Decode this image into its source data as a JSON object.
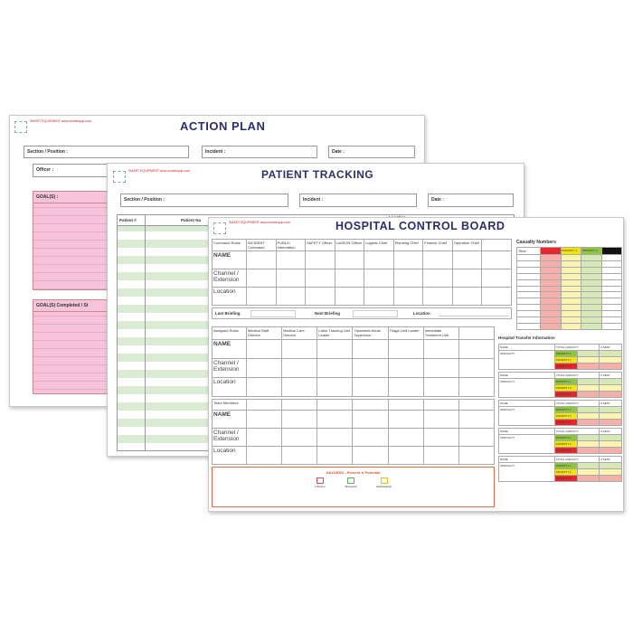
{
  "action_plan": {
    "title": "ACTION PLAN",
    "logo": "SMART EQUIPMENT www.smartequip.com",
    "section_label": "Section / Position :",
    "incident_label": "Incident :",
    "date_label": "Date :",
    "officer_label": "Officer :",
    "goals_label": "GOAL(S) :",
    "goals_completed_label": "GOAL(S) Completed / St"
  },
  "patient_tracking": {
    "title": "PATIENT TRACKING",
    "logo": "SMART EQUIPMENT www.smartequip.com",
    "section_label": "Section / Position :",
    "incident_label": "Incident :",
    "date_label": "Date :",
    "columns": [
      "Patient #",
      "Patient Na",
      "Location"
    ]
  },
  "control_board": {
    "title": "HOSPITAL CONTROL BOARD",
    "logo": "SMART EQUIPMENT www.smartequip.com",
    "command": {
      "header": "Command Roles",
      "roles": [
        "INCIDENT Command",
        "PUBLIC Information",
        "SAFETY Officer",
        "LIAISON Officer",
        "Logistic Chief",
        "Planning Chief",
        "Finance Chief",
        "Operation Chief",
        ""
      ],
      "row_labels": [
        "NAME",
        "Channel / Extension",
        "Location"
      ]
    },
    "briefing": {
      "last": "Last Briefing",
      "next": "Next Briefing",
      "location": "Location"
    },
    "assigned": {
      "header": "Assigned Roles",
      "roles": [
        "Medical Staff Director",
        "Medical Care Director",
        "Labor Tracking Unit Leader",
        "Treatment Areas Supervisor",
        "Triage Unit Leader",
        "Immediate Treatment Unit",
        ""
      ],
      "row_labels": [
        "NAME",
        "Channel / Extension",
        "Location"
      ]
    },
    "team": {
      "header": "Team Members",
      "row_labels": [
        "NAME",
        "Channel / Extension",
        "Location"
      ]
    },
    "hazards": {
      "title": "HAZARDS - Present & Potential",
      "icons": [
        {
          "label": "Infection",
          "color": "#d9534f"
        },
        {
          "label": "Biological",
          "color": "#5cb85c"
        },
        {
          "label": "Radiological",
          "color": "#e6c200"
        }
      ]
    },
    "casualty": {
      "title": "Casualty Numbers",
      "time_label": "Time",
      "columns": [
        {
          "label": "",
          "color": "#e8262b",
          "fill": "#f4b0a8"
        },
        {
          "label": "PRIORITY 1",
          "color": "#f2e600",
          "fill": "#fbf3b0"
        },
        {
          "label": "PRIORITY 2",
          "color": "#8fc641",
          "fill": "#d5e8b5"
        },
        {
          "label": "",
          "color": "#111111",
          "fill": "#ffffff"
        }
      ]
    },
    "transfer": {
      "title": "Hospital Transfer Information",
      "name_label": "NAME",
      "specialty_label": "SPECIALTY",
      "capacity_label": "TOTAL CAPACITY",
      "sent_label": "# SENT",
      "priorities": [
        "PRIORITY 1",
        "PRIORITY 2",
        "PRIORITY 3"
      ],
      "blocks": 5
    }
  }
}
